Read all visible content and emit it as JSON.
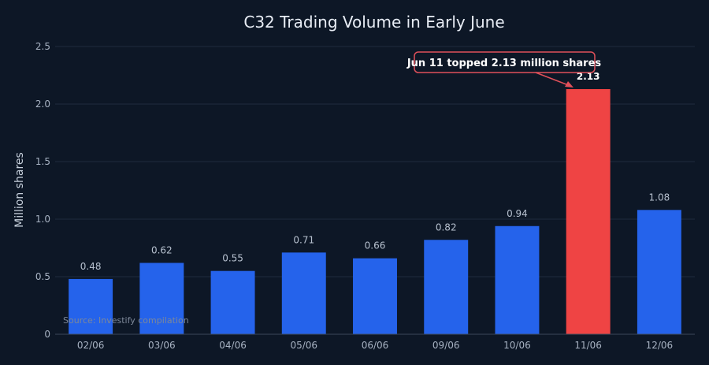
{
  "chart_data": {
    "type": "bar",
    "title": "C32 Trading Volume in Early June",
    "xlabel": "",
    "ylabel": "Million shares",
    "categories": [
      "02/06",
      "03/06",
      "04/06",
      "05/06",
      "06/06",
      "09/06",
      "10/06",
      "11/06",
      "12/06"
    ],
    "values": [
      0.48,
      0.62,
      0.55,
      0.71,
      0.66,
      0.82,
      0.94,
      2.13,
      1.08
    ],
    "value_labels": [
      "0.48",
      "0.62",
      "0.55",
      "0.71",
      "0.66",
      "0.82",
      "0.94",
      "2.13",
      "1.08"
    ],
    "ylim": [
      0,
      2.5
    ],
    "yticks": [
      0,
      0.5,
      1,
      1.5,
      2,
      2.5
    ],
    "ytick_labels": [
      "0",
      "0.5",
      "1.0",
      "1.5",
      "2.0",
      "2.5"
    ],
    "grid": true,
    "highlight_index": 7,
    "annotation": "Jun 11 topped 2.13 million shares",
    "source": "Source: Investify compilation",
    "colors": {
      "bar": "#2563eb",
      "highlight": "#ef4444",
      "background": "#0d1726",
      "annotation_border": "#e0505a"
    }
  }
}
